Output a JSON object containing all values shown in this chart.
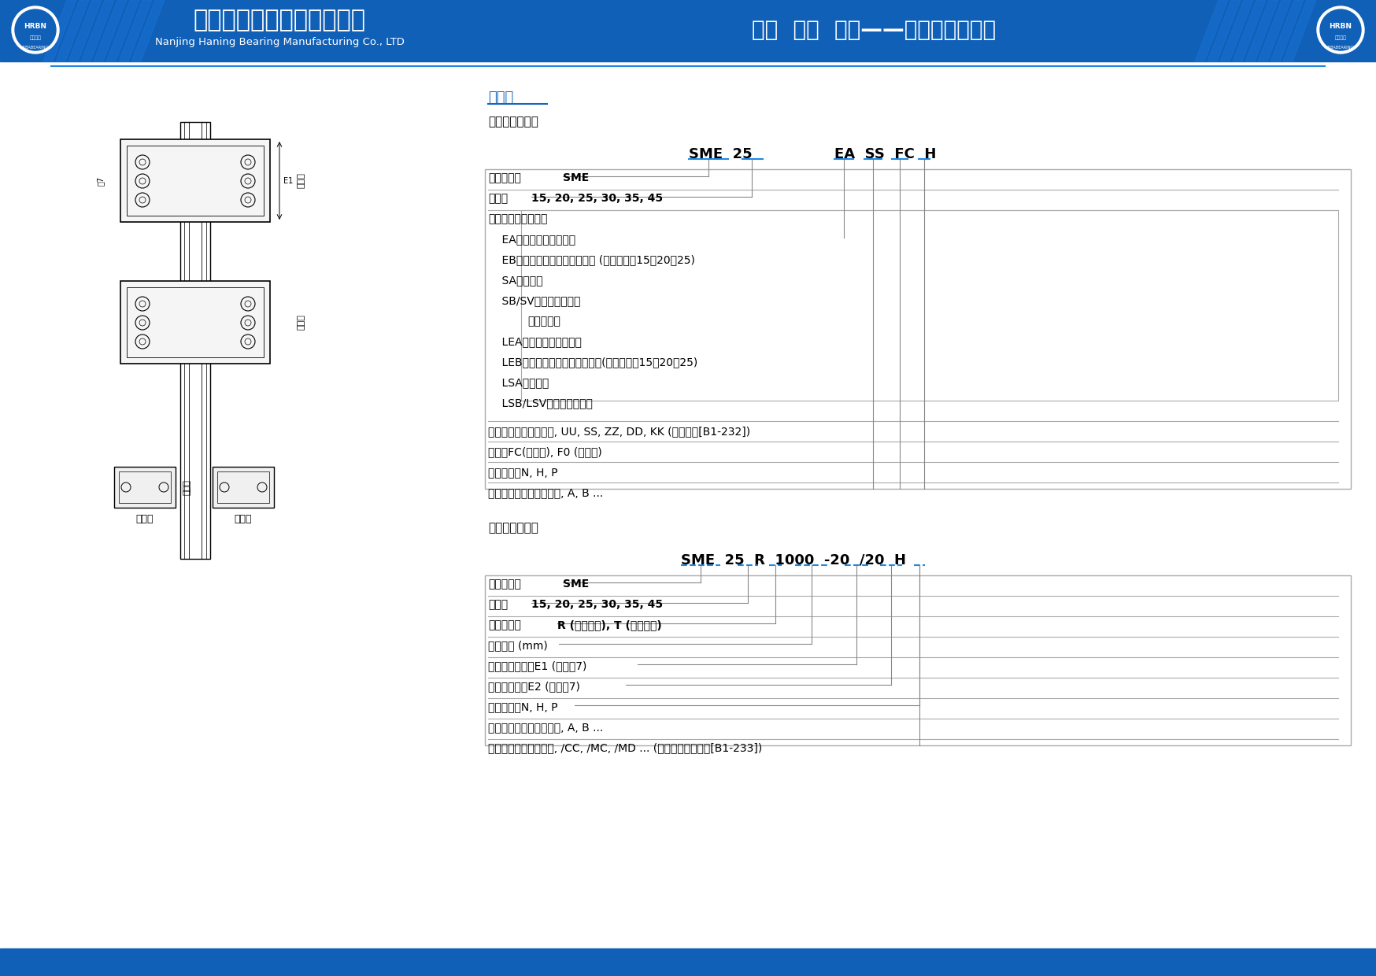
{
  "header_bg_color": "#1060B8",
  "header_text_cn": "南京哈宁轴承制造有限公司",
  "header_text_en": "Nanjing Haning Bearing Manufacturing Co., LTD",
  "header_slogan": "诚信  创新  担当——世界因我们而动",
  "footer_bg_color": "#1060B8",
  "blue_line_color": "#1E88E5",
  "title1_color": "#1565C0",
  "title1": "互换型",
  "subtitle1": "互换型滑块型号",
  "model1_left": "SME  25",
  "model1_right": "EA  SS  FC  H",
  "block1_rows": [
    "系列名称：SME",
    "尺寸：15, 20, 25, 30, 35, 45",
    "滑块种类：重负荷型",
    "    EA：法兰型，上下锁式",
    "    EB：法兰低组装型，上下锁式 (尺寸仅提供15、20、25)",
    "    SA：四方型",
    "    SB/SV：四方低组装型",
    "    超重负荷型",
    "    LEA：法兰型，上下锁式",
    "    LEB：法兰低组装型，上下锁式(尺寸仅提供15、20、25)",
    "    LSA：四方型",
    "    LSB/LSV：四方低组装型"
  ],
  "block1_extra": [
    "密封垫片种类：无记号, UU, SS, ZZ, DD, KK (参考防尘[B1-232])",
    "预压：FC(轻预压), F0 (中预压)",
    "精度等级：N, H, P",
    "非标准滑块注记：无记号, A, B ..."
  ],
  "title2": "互换型滑轨型号",
  "model2": "SME  25  R  1000  -20  /20  H",
  "block2_rows": [
    "系列名称：SME",
    "尺寸：15, 20, 25, 30, 35, 45",
    "滑轨种类：R (沉头孔型), T (螺纹孔型)",
    "滑轨长度 (mm)",
    "滑轨起始端孔距E1 (参照图7)",
    "滑轨末端孔距E2 (参照图7)",
    "精度等级：N, H, P",
    "非标准滑轨注记：无记号, A, B ...",
    "滑轨防尘配件：无记号, /CC, /MC, /MD ... (参考滑轨防尘配件[B1-233])"
  ],
  "sep_color": "#AAAAAA",
  "line_color": "#888888"
}
